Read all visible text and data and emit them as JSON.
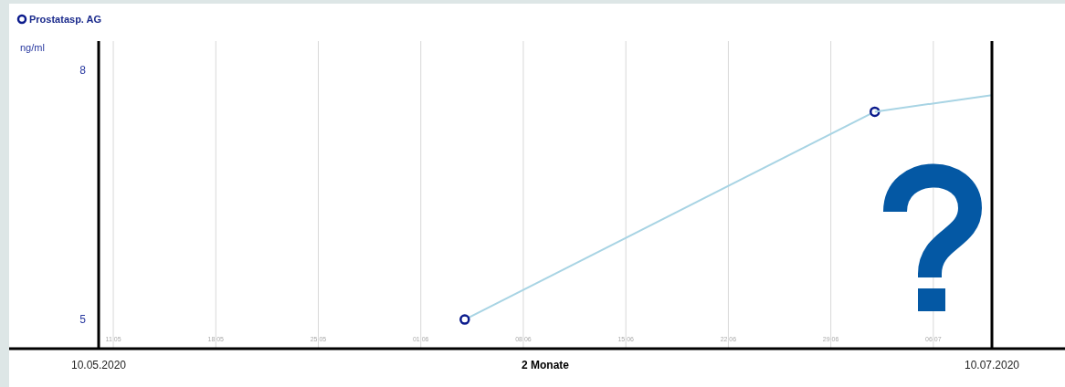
{
  "chart_data": {
    "type": "line",
    "ylabel": "ng/ml",
    "xlabel": "2 Monate",
    "legend": "top left",
    "grid": "x",
    "marker": "circle",
    "xlim": [
      "2020-05-10",
      "2020-07-10"
    ],
    "annotations": [
      "10.05.2020",
      "10.07.2020"
    ],
    "xticks": [
      {
        "value": "2020-05-11",
        "label": "11 05"
      },
      {
        "value": "2020-05-18",
        "label": "18 05"
      },
      {
        "value": "2020-05-25",
        "label": "25 05"
      },
      {
        "value": "2020-06-01",
        "label": "01 06"
      },
      {
        "value": "2020-06-08",
        "label": "08 06"
      },
      {
        "value": "2020-06-15",
        "label": "15 06"
      },
      {
        "value": "2020-06-22",
        "label": "22 06"
      },
      {
        "value": "2020-06-29",
        "label": "29 06"
      },
      {
        "value": "2020-07-06",
        "label": "06 07"
      }
    ],
    "ylim": [
      4.65,
      8.35
    ],
    "yticks": [
      5,
      8
    ],
    "series": [
      {
        "name": "Prostatasp. AG",
        "color": "#0a1a8c",
        "x": [
          "2020-06-04",
          "2020-07-02"
        ],
        "values": [
          5,
          7.5
        ]
      },
      {
        "color": "#a8d4e4",
        "marker": "none",
        "x": [
          "2020-07-02",
          "2020-07-10"
        ],
        "values": [
          7.5,
          7.7
        ]
      }
    ]
  }
}
